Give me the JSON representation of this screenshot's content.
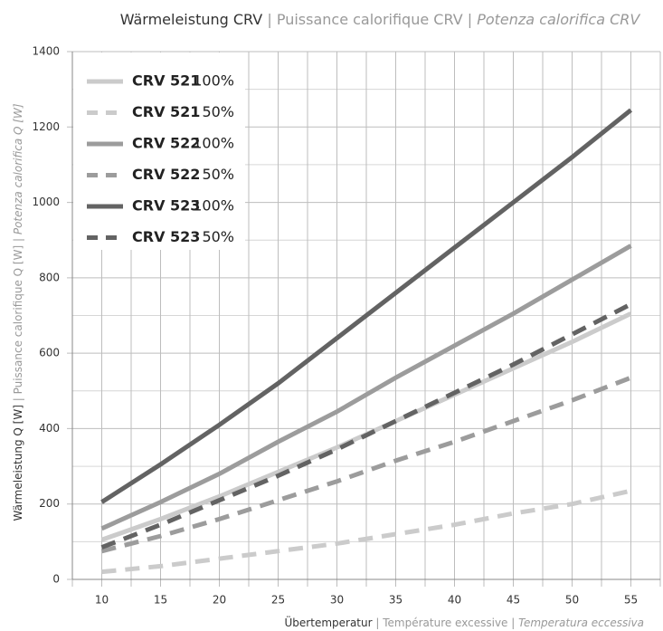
{
  "chart_data": {
    "type": "line",
    "title": [
      "Wärmeleistung CRV",
      "| Puissance calorifique CRV",
      "| Potenza calorifica CRV"
    ],
    "xlabel": [
      "Übertemperatur",
      "| Température excessive",
      "| Temperatura eccessiva"
    ],
    "ylabel": [
      "Wärmeleistung Q [W]",
      "| Puissance calorifique Q [W]",
      "| Potenza calorifica Q [W]"
    ],
    "x": [
      10,
      15,
      20,
      25,
      30,
      35,
      40,
      45,
      50,
      55
    ],
    "xlim": [
      7.5,
      57.5
    ],
    "xticks": [
      10,
      15,
      20,
      25,
      30,
      35,
      40,
      45,
      50,
      55
    ],
    "xminor_ticks": [
      7.5,
      12.5,
      17.5,
      22.5,
      27.5,
      32.5,
      37.5,
      42.5,
      47.5,
      52.5,
      57.5
    ],
    "ylim": [
      0,
      1400
    ],
    "yticks": [
      0,
      200,
      400,
      600,
      800,
      1000,
      1200,
      1400
    ],
    "yminor_ticks": [
      100,
      300,
      500,
      700,
      900,
      1100,
      1300
    ],
    "grid": true,
    "legend": "upper left",
    "series": [
      {
        "name": "CRV 521",
        "label": "100%",
        "color": "#cbcbcb",
        "dashed": false,
        "values": [
          105,
          160,
          220,
          285,
          350,
          420,
          490,
          560,
          630,
          705
        ]
      },
      {
        "name": "CRV 521",
        "label": "50%",
        "color": "#cbcbcb",
        "dashed": true,
        "values": [
          20,
          35,
          55,
          75,
          95,
          120,
          145,
          175,
          200,
          235
        ]
      },
      {
        "name": "CRV 522",
        "label": "100%",
        "color": "#9c9c9c",
        "dashed": false,
        "values": [
          135,
          205,
          280,
          365,
          445,
          535,
          620,
          705,
          795,
          885
        ]
      },
      {
        "name": "CRV 522",
        "label": "50%",
        "color": "#9c9c9c",
        "dashed": true,
        "values": [
          75,
          115,
          160,
          210,
          260,
          315,
          365,
          420,
          475,
          535
        ]
      },
      {
        "name": "CRV 523",
        "label": "100%",
        "color": "#636363",
        "dashed": false,
        "values": [
          205,
          305,
          410,
          520,
          640,
          760,
          880,
          1000,
          1120,
          1245
        ]
      },
      {
        "name": "CRV 523",
        "label": "50%",
        "color": "#636363",
        "dashed": true,
        "values": [
          85,
          145,
          210,
          275,
          345,
          420,
          495,
          570,
          650,
          730
        ]
      }
    ]
  }
}
